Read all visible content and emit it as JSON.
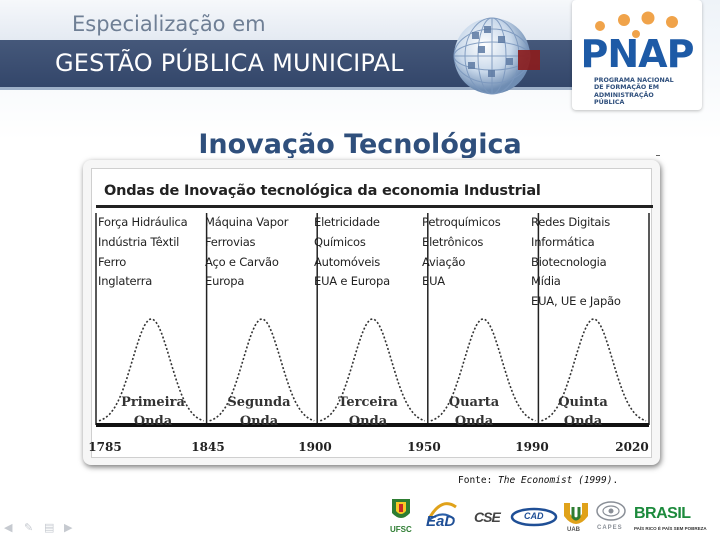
{
  "header": {
    "subtitle": "Especialização em",
    "title": "GESTÃO PÚBLICA MUNICIPAL"
  },
  "logo": {
    "name": "PNAP",
    "subtitle_lines": [
      "PROGRAMA NACIONAL",
      "DE FORMAÇÃO EM",
      "ADMINISTRAÇÃO PÚBLICA"
    ]
  },
  "slide": {
    "title": "Inovação Tecnológica"
  },
  "figure": {
    "title": "Ondas de Inovação tecnológica da economia Industrial",
    "waves": [
      {
        "items": [
          "Força Hidráulica",
          "Indústria Têxtil",
          "Ferro",
          "Inglaterra"
        ],
        "name_line1": "Primeira",
        "name_line2": "Onda"
      },
      {
        "items": [
          "Máquina Vapor",
          "Ferrovias",
          "Aço e Carvão",
          "Europa"
        ],
        "name_line1": "Segunda",
        "name_line2": "Onda"
      },
      {
        "items": [
          "Eletricidade",
          "Químicos",
          "Automóveis",
          "EUA e Europa"
        ],
        "name_line1": "Terceira",
        "name_line2": "Onda"
      },
      {
        "items": [
          "Petroquímicos",
          "Eletrônicos",
          "Aviação",
          "EUA"
        ],
        "name_line1": "Quarta",
        "name_line2": "Onda"
      },
      {
        "items": [
          "Redes Digitais",
          "Informática",
          "Biotecnologia",
          "Mídia",
          "EUA, UE e Japão"
        ],
        "name_line1": "Quinta",
        "name_line2": "Onda"
      }
    ],
    "years": [
      "1785",
      "1845",
      "1900",
      "1950",
      "1990",
      "2020"
    ]
  },
  "source": {
    "prefix": "Fonte: ",
    "publication": "The Economist (1999)",
    "suffix": "."
  },
  "footer": {
    "logos": [
      "UFSC",
      "EaD",
      "CSE",
      "CAD",
      "UAB",
      "CAPES",
      "BRASIL"
    ],
    "brasil_tagline": "PAÍS RICO É PAÍS SEM POBREZA"
  }
}
